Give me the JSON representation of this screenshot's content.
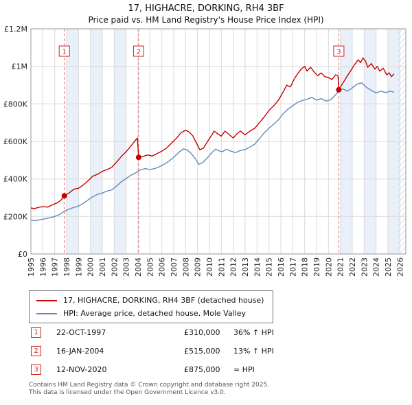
{
  "title": {
    "line1": "17, HIGHACRE, DORKING, RH4 3BF",
    "line2": "Price paid vs. HM Land Registry's House Price Index (HPI)"
  },
  "chart_data": {
    "type": "line",
    "x_range": [
      1995,
      2026.5
    ],
    "y_range": [
      0,
      1200000
    ],
    "x_ticks": [
      1995,
      1996,
      1997,
      1998,
      1999,
      2000,
      2001,
      2002,
      2003,
      2004,
      2005,
      2006,
      2007,
      2008,
      2009,
      2010,
      2011,
      2012,
      2013,
      2014,
      2015,
      2016,
      2017,
      2018,
      2019,
      2020,
      2021,
      2022,
      2023,
      2024,
      2025,
      2026
    ],
    "y_ticks": [
      {
        "v": 0,
        "label": "£0"
      },
      {
        "v": 200000,
        "label": "£200K"
      },
      {
        "v": 400000,
        "label": "£400K"
      },
      {
        "v": 600000,
        "label": "£600K"
      },
      {
        "v": 800000,
        "label": "£800K"
      },
      {
        "v": 1000000,
        "label": "£1M"
      },
      {
        "v": 1200000,
        "label": "£1.2M"
      }
    ],
    "grid": true,
    "legend_position": "below",
    "values_unit": "GBP_thousands",
    "shaded_regions": [
      [
        1997.81,
        2004.05
      ],
      [
        2020.87,
        2026.5
      ]
    ],
    "future_start": 2025.8,
    "stripe_color": "#eaf0f9",
    "series": [
      {
        "name": "17, HIGHACRE, DORKING, RH4 3BF (detached house)",
        "color": "#c40000",
        "x": [
          1995.0,
          1995.3,
          1995.6,
          1996.0,
          1996.4,
          1996.8,
          1997.2,
          1997.5,
          1997.81,
          1998.2,
          1998.6,
          1999.0,
          1999.4,
          1999.8,
          2000.2,
          2000.6,
          2001.0,
          2001.4,
          2001.8,
          2002.2,
          2002.6,
          2003.0,
          2003.4,
          2003.7,
          2003.95,
          2004.05,
          2004.4,
          2004.8,
          2005.2,
          2005.6,
          2006.0,
          2006.4,
          2006.8,
          2007.2,
          2007.6,
          2008.0,
          2008.3,
          2008.6,
          2009.0,
          2009.2,
          2009.5,
          2009.8,
          2010.1,
          2010.4,
          2010.7,
          2011.0,
          2011.3,
          2011.6,
          2012.0,
          2012.3,
          2012.6,
          2013.0,
          2013.4,
          2013.8,
          2014.2,
          2014.6,
          2015.0,
          2015.4,
          2015.8,
          2016.2,
          2016.5,
          2016.8,
          2017.1,
          2017.4,
          2017.7,
          2018.0,
          2018.2,
          2018.5,
          2018.8,
          2019.1,
          2019.4,
          2019.7,
          2020.0,
          2020.3,
          2020.6,
          2020.8,
          2020.87,
          2021.0,
          2021.3,
          2021.6,
          2021.9,
          2022.2,
          2022.5,
          2022.7,
          2022.9,
          2023.1,
          2023.3,
          2023.6,
          2023.9,
          2024.1,
          2024.3,
          2024.6,
          2024.9,
          2025.1,
          2025.3,
          2025.5
        ],
        "values": [
          245,
          242,
          248,
          252,
          250,
          262,
          272,
          285,
          310,
          325,
          345,
          350,
          368,
          390,
          415,
          425,
          440,
          450,
          462,
          490,
          520,
          545,
          575,
          600,
          618,
          515,
          520,
          528,
          522,
          535,
          548,
          565,
          590,
          615,
          645,
          660,
          650,
          630,
          580,
          555,
          565,
          595,
          625,
          655,
          640,
          628,
          655,
          640,
          618,
          640,
          655,
          635,
          655,
          670,
          700,
          730,
          765,
          790,
          820,
          865,
          900,
          890,
          930,
          960,
          985,
          1000,
          975,
          995,
          970,
          950,
          965,
          945,
          940,
          930,
          955,
          950,
          875,
          890,
          920,
          950,
          980,
          1010,
          1035,
          1020,
          1045,
          1030,
          995,
          1015,
          985,
          1000,
          975,
          990,
          955,
          965,
          945,
          960
        ]
      },
      {
        "name": "HPI: Average price, detached house, Mole Valley",
        "color": "#6289b8",
        "x": [
          1995.0,
          1995.4,
          1995.8,
          1996.2,
          1996.6,
          1997.0,
          1997.4,
          1997.81,
          1998.2,
          1998.6,
          1999.0,
          1999.4,
          1999.8,
          2000.2,
          2000.6,
          2001.0,
          2001.4,
          2001.8,
          2002.2,
          2002.6,
          2003.0,
          2003.4,
          2003.8,
          2004.2,
          2004.6,
          2005.0,
          2005.4,
          2005.8,
          2006.2,
          2006.6,
          2007.0,
          2007.4,
          2007.8,
          2008.1,
          2008.4,
          2008.8,
          2009.1,
          2009.4,
          2009.8,
          2010.2,
          2010.5,
          2010.8,
          2011.1,
          2011.4,
          2011.8,
          2012.2,
          2012.6,
          2013.0,
          2013.4,
          2013.8,
          2014.2,
          2014.6,
          2015.0,
          2015.4,
          2015.8,
          2016.2,
          2016.6,
          2017.0,
          2017.4,
          2017.8,
          2018.2,
          2018.6,
          2019.0,
          2019.4,
          2019.8,
          2020.2,
          2020.6,
          2020.87,
          2021.2,
          2021.6,
          2022.0,
          2022.4,
          2022.8,
          2023.2,
          2023.6,
          2024.0,
          2024.4,
          2024.8,
          2025.2,
          2025.5
        ],
        "values": [
          180,
          178,
          183,
          188,
          193,
          200,
          210,
          228,
          238,
          248,
          255,
          270,
          288,
          305,
          318,
          325,
          335,
          342,
          362,
          385,
          402,
          420,
          432,
          448,
          455,
          450,
          455,
          465,
          478,
          495,
          515,
          540,
          560,
          555,
          540,
          510,
          478,
          485,
          510,
          540,
          558,
          550,
          545,
          558,
          548,
          540,
          552,
          556,
          570,
          585,
          615,
          645,
          670,
          692,
          715,
          748,
          772,
          790,
          808,
          818,
          825,
          835,
          820,
          828,
          815,
          822,
          848,
          872,
          880,
          868,
          885,
          905,
          912,
          888,
          872,
          858,
          868,
          860,
          868,
          862
        ]
      }
    ],
    "sales": [
      {
        "label": "1",
        "x": 1997.81,
        "price_gbp": 310000
      },
      {
        "label": "2",
        "x": 2004.05,
        "price_gbp": 515000
      },
      {
        "label": "3",
        "x": 2020.87,
        "price_gbp": 875000
      }
    ]
  },
  "transactions": [
    {
      "num": "1",
      "date": "22-OCT-1997",
      "price": "£310,000",
      "hpi": "36% ↑ HPI"
    },
    {
      "num": "2",
      "date": "16-JAN-2004",
      "price": "£515,000",
      "hpi": "13% ↑ HPI"
    },
    {
      "num": "3",
      "date": "12-NOV-2020",
      "price": "£875,000",
      "hpi": "≈ HPI"
    }
  ],
  "footer": {
    "line1": "Contains HM Land Registry data © Crown copyright and database right 2025.",
    "line2": "This data is licensed under the Open Government Licence v3.0."
  }
}
